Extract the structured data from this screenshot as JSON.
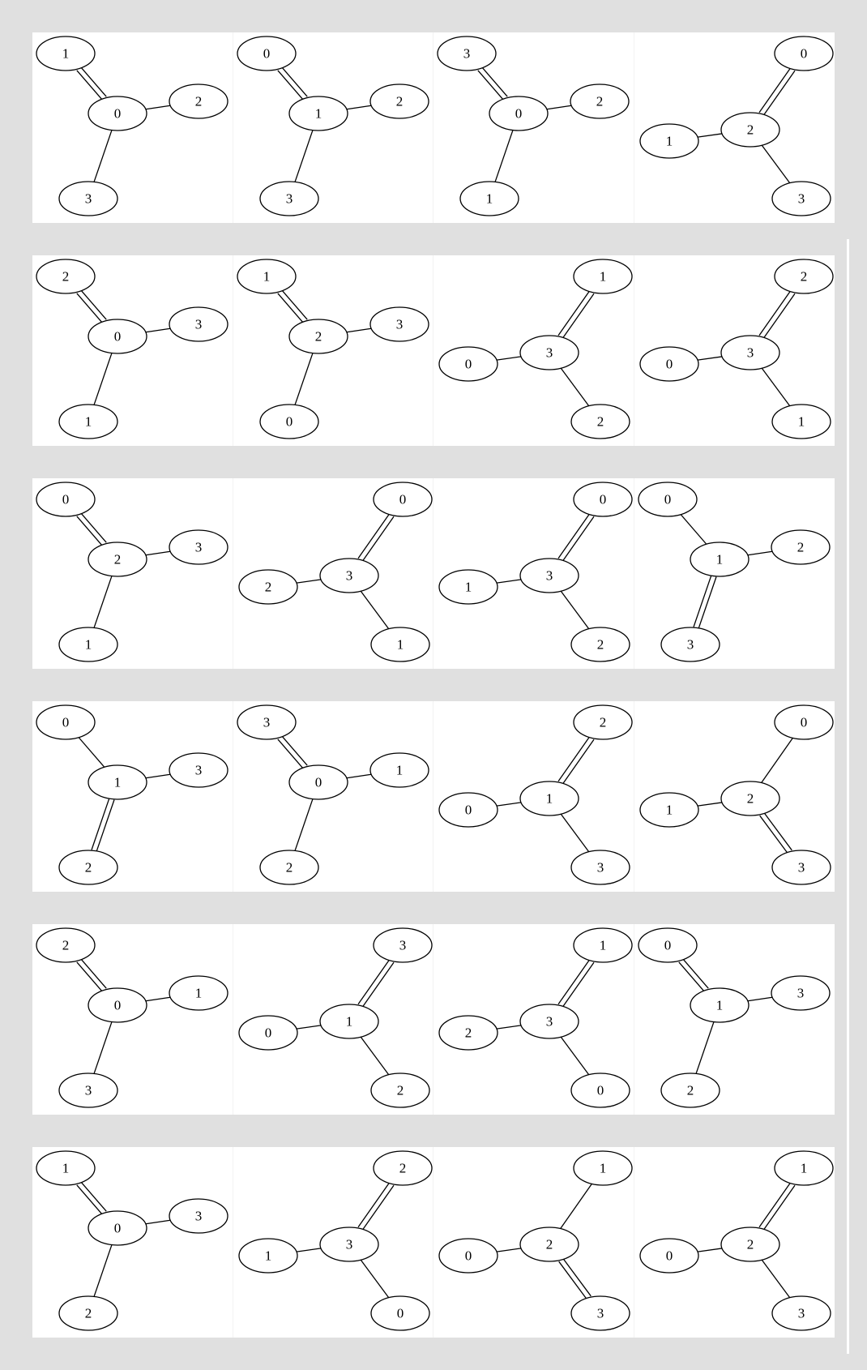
{
  "colors": {
    "background": "#e0e0e0",
    "panel": "#ffffff",
    "stroke": "#000000"
  },
  "graphs": [
    {
      "hub": "0",
      "top": "1",
      "right": "2",
      "bottom": "3",
      "double": "top"
    },
    {
      "hub": "1",
      "top": "0",
      "right": "2",
      "bottom": "3",
      "double": "top"
    },
    {
      "hub": "0",
      "top": "3",
      "right": "2",
      "bottom": "1",
      "double": "top"
    },
    {
      "hub": "2",
      "top": "0",
      "right": "1",
      "bottom": "3",
      "double": "top",
      "mirror": true
    },
    {
      "hub": "0",
      "top": "2",
      "right": "3",
      "bottom": "1",
      "double": "top"
    },
    {
      "hub": "2",
      "top": "1",
      "right": "3",
      "bottom": "0",
      "double": "top"
    },
    {
      "hub": "3",
      "top": "1",
      "right": "0",
      "bottom": "2",
      "double": "top",
      "mirror": true
    },
    {
      "hub": "3",
      "top": "2",
      "right": "0",
      "bottom": "1",
      "double": "top",
      "mirror": true
    },
    {
      "hub": "2",
      "top": "0",
      "right": "3",
      "bottom": "1",
      "double": "top"
    },
    {
      "hub": "3",
      "top": "0",
      "right": "2",
      "bottom": "1",
      "double": "top",
      "mirror": true
    },
    {
      "hub": "3",
      "top": "0",
      "right": "1",
      "bottom": "2",
      "double": "top",
      "mirror": true
    },
    {
      "hub": "1",
      "top": "0",
      "right": "2",
      "bottom": "3",
      "double": "bottom"
    },
    {
      "hub": "1",
      "top": "0",
      "right": "3",
      "bottom": "2",
      "double": "bottom"
    },
    {
      "hub": "0",
      "top": "3",
      "right": "1",
      "bottom": "2",
      "double": "top"
    },
    {
      "hub": "1",
      "top": "2",
      "right": "0",
      "bottom": "3",
      "double": "top",
      "mirror": true
    },
    {
      "hub": "2",
      "top": "0",
      "right": "1",
      "bottom": "3",
      "double": "bottom",
      "mirror": true
    },
    {
      "hub": "0",
      "top": "2",
      "right": "1",
      "bottom": "3",
      "double": "top"
    },
    {
      "hub": "1",
      "top": "3",
      "right": "0",
      "bottom": "2",
      "double": "top",
      "mirror": true
    },
    {
      "hub": "3",
      "top": "1",
      "right": "2",
      "bottom": "0",
      "double": "top",
      "mirror": true
    },
    {
      "hub": "1",
      "top": "0",
      "right": "3",
      "bottom": "2",
      "double": "top"
    },
    {
      "hub": "0",
      "top": "1",
      "right": "3",
      "bottom": "2",
      "double": "top"
    },
    {
      "hub": "3",
      "top": "2",
      "right": "1",
      "bottom": "0",
      "double": "top",
      "mirror": true
    },
    {
      "hub": "2",
      "top": "1",
      "right": "0",
      "bottom": "3",
      "double": "bottom",
      "mirror": true
    },
    {
      "hub": "2",
      "top": "1",
      "right": "0",
      "bottom": "3",
      "double": "top",
      "mirror": true
    }
  ]
}
